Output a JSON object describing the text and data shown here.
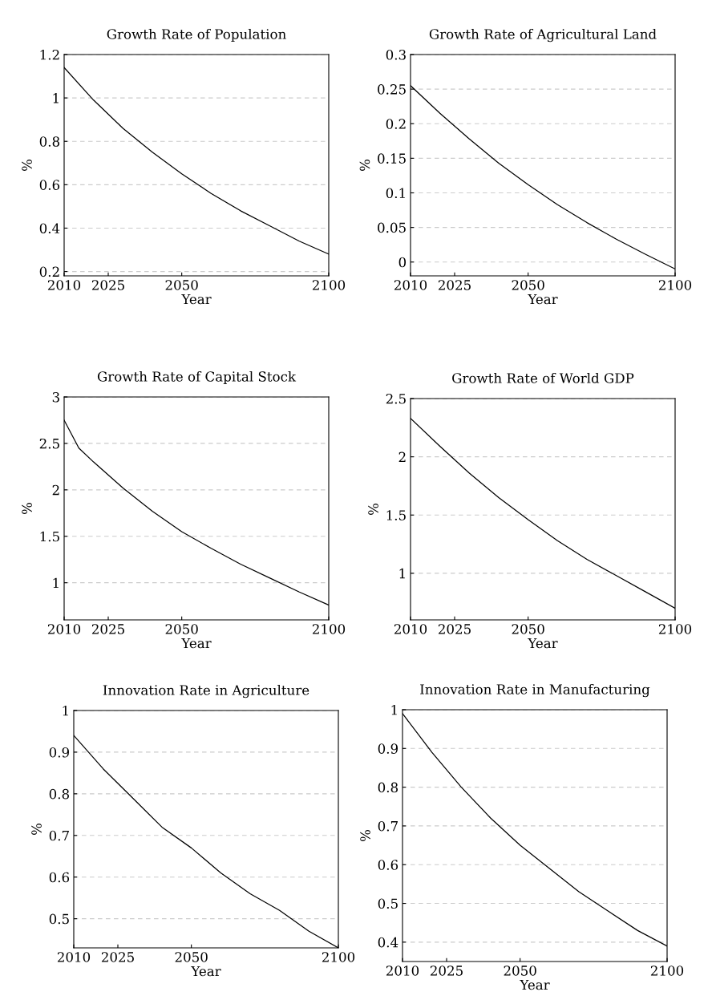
{
  "chart_data": [
    {
      "type": "line",
      "title": "Growth Rate of Population",
      "xlabel": "Year",
      "ylabel": "%",
      "x": [
        2010,
        2020,
        2030,
        2040,
        2050,
        2060,
        2070,
        2080,
        2090,
        2100
      ],
      "series": [
        {
          "color": "#000000",
          "values": [
            1.14,
            0.99,
            0.86,
            0.75,
            0.65,
            0.56,
            0.48,
            0.41,
            0.34,
            0.28
          ]
        }
      ],
      "xlim": [
        2010,
        2100
      ],
      "xticks": [
        2010,
        2025,
        2050,
        2100
      ],
      "ylim": [
        0.18,
        1.2
      ],
      "yticks": [
        0.2,
        0.4,
        0.6,
        0.8,
        1,
        1.2
      ],
      "grid": "y"
    },
    {
      "type": "line",
      "title": "Growth Rate of Agricultural Land",
      "xlabel": "Year",
      "ylabel": "%",
      "x": [
        2010,
        2020,
        2030,
        2040,
        2050,
        2060,
        2070,
        2080,
        2090,
        2100
      ],
      "series": [
        {
          "color": "#000000",
          "values": [
            0.255,
            0.215,
            0.178,
            0.143,
            0.112,
            0.083,
            0.057,
            0.033,
            0.011,
            -0.01
          ]
        }
      ],
      "xlim": [
        2010,
        2100
      ],
      "xticks": [
        2010,
        2025,
        2050,
        2100
      ],
      "ylim": [
        -0.02,
        0.3
      ],
      "yticks": [
        0,
        0.05,
        0.1,
        0.15,
        0.2,
        0.25,
        0.3
      ],
      "grid": "y"
    },
    {
      "type": "line",
      "title": "Growth Rate of Capital Stock",
      "xlabel": "Year",
      "ylabel": "%",
      "x": [
        2010,
        2015,
        2020,
        2030,
        2040,
        2050,
        2060,
        2070,
        2080,
        2090,
        2100
      ],
      "series": [
        {
          "color": "#000000",
          "values": [
            2.75,
            2.45,
            2.3,
            2.02,
            1.77,
            1.55,
            1.37,
            1.2,
            1.05,
            0.9,
            0.76
          ]
        }
      ],
      "xlim": [
        2010,
        2100
      ],
      "xticks": [
        2010,
        2025,
        2050,
        2100
      ],
      "ylim": [
        0.6,
        3
      ],
      "yticks": [
        1,
        1.5,
        2,
        2.5,
        3
      ],
      "grid": "y"
    },
    {
      "type": "line",
      "title": "Growth Rate of World GDP",
      "xlabel": "Year",
      "ylabel": "%",
      "x": [
        2010,
        2020,
        2030,
        2040,
        2050,
        2060,
        2070,
        2080,
        2090,
        2100
      ],
      "series": [
        {
          "color": "#000000",
          "values": [
            2.33,
            2.09,
            1.86,
            1.65,
            1.46,
            1.28,
            1.12,
            0.98,
            0.84,
            0.7
          ]
        }
      ],
      "xlim": [
        2010,
        2100
      ],
      "xticks": [
        2010,
        2025,
        2050,
        2100
      ],
      "ylim": [
        0.6,
        2.5
      ],
      "yticks": [
        1,
        1.5,
        2,
        2.5
      ],
      "grid": "y"
    },
    {
      "type": "line",
      "title": "Innovation Rate in Agriculture",
      "xlabel": "Year",
      "ylabel": "%",
      "x": [
        2010,
        2020,
        2030,
        2040,
        2050,
        2060,
        2070,
        2080,
        2090,
        2100
      ],
      "series": [
        {
          "color": "#000000",
          "values": [
            0.94,
            0.86,
            0.79,
            0.72,
            0.67,
            0.61,
            0.56,
            0.52,
            0.47,
            0.43
          ]
        }
      ],
      "xlim": [
        2010,
        2100
      ],
      "xticks": [
        2010,
        2025,
        2050,
        2100
      ],
      "ylim": [
        0.43,
        1
      ],
      "yticks": [
        0.5,
        0.6,
        0.7,
        0.8,
        0.9,
        1
      ],
      "grid": "y"
    },
    {
      "type": "line",
      "title": "Innovation Rate in Manufacturing",
      "xlabel": "Year",
      "ylabel": "%",
      "x": [
        2010,
        2020,
        2030,
        2040,
        2050,
        2060,
        2070,
        2080,
        2090,
        2100
      ],
      "series": [
        {
          "color": "#000000",
          "values": [
            0.99,
            0.89,
            0.8,
            0.72,
            0.65,
            0.59,
            0.53,
            0.48,
            0.43,
            0.39
          ]
        }
      ],
      "xlim": [
        2010,
        2100
      ],
      "xticks": [
        2010,
        2025,
        2050,
        2100
      ],
      "ylim": [
        0.35,
        1
      ],
      "yticks": [
        0.4,
        0.5,
        0.6,
        0.7,
        0.8,
        0.9,
        1
      ],
      "grid": "y"
    }
  ]
}
